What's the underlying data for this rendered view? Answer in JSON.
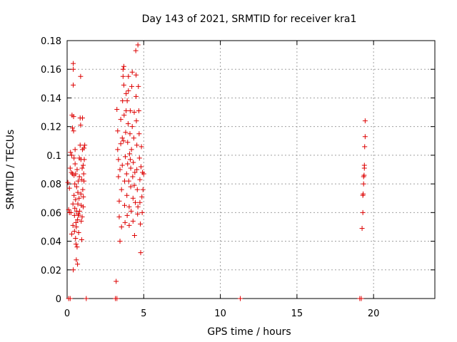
{
  "chart_data": {
    "type": "scatter",
    "title": "Day 143 of 2021, SRMTID for receiver kra1",
    "xlabel": "GPS time / hours",
    "ylabel": "SRMTID / TECUs",
    "xlim": [
      0,
      24
    ],
    "ylim": [
      0,
      0.18
    ],
    "x_ticks": [
      0,
      5,
      10,
      15,
      20
    ],
    "y_ticks": [
      0,
      0.02,
      0.04,
      0.06,
      0.08,
      0.1,
      0.12,
      0.14,
      0.16,
      0.18
    ],
    "x_tick_labels": [
      "0",
      "5",
      "10",
      "15",
      "20"
    ],
    "y_tick_labels": [
      "0",
      "0.02",
      "0.04",
      "0.06",
      "0.08",
      "0.1",
      "0.12",
      "0.14",
      "0.16",
      "0.18"
    ],
    "grid": true,
    "marker": "+",
    "color": "#dd0000",
    "series": [
      {
        "name": "SRMTID",
        "points": [
          [
            0.05,
            0.081
          ],
          [
            0.1,
            0.062
          ],
          [
            0.15,
            0.077
          ],
          [
            0.2,
            0.091
          ],
          [
            0.22,
            0.102
          ],
          [
            0.25,
            0.06
          ],
          [
            0.28,
            0.088
          ],
          [
            0.3,
            0.1
          ],
          [
            0.32,
            0.128
          ],
          [
            0.35,
            0.119
          ],
          [
            0.35,
            0.087
          ],
          [
            0.38,
            0.066
          ],
          [
            0.38,
            0.051
          ],
          [
            0.4,
            0.02
          ],
          [
            0.4,
            0.164
          ],
          [
            0.4,
            0.16
          ],
          [
            0.4,
            0.149
          ],
          [
            0.42,
            0.127
          ],
          [
            0.42,
            0.117
          ],
          [
            0.45,
            0.098
          ],
          [
            0.45,
            0.086
          ],
          [
            0.45,
            0.072
          ],
          [
            0.48,
            0.058
          ],
          [
            0.48,
            0.047
          ],
          [
            0.5,
            0.063
          ],
          [
            0.5,
            0.08
          ],
          [
            0.52,
            0.094
          ],
          [
            0.52,
            0.104
          ],
          [
            0.55,
            0.087
          ],
          [
            0.55,
            0.069
          ],
          [
            0.58,
            0.053
          ],
          [
            0.58,
            0.038
          ],
          [
            0.6,
            0.027
          ],
          [
            0.6,
            0.05
          ],
          [
            0.62,
            0.061
          ],
          [
            0.62,
            0.078
          ],
          [
            0.65,
            0.09
          ],
          [
            0.65,
            0.036
          ],
          [
            0.68,
            0.024
          ],
          [
            0.68,
            0.055
          ],
          [
            0.7,
            0.066
          ],
          [
            0.7,
            0.074
          ],
          [
            0.72,
            0.082
          ],
          [
            0.75,
            0.046
          ],
          [
            0.75,
            0.058
          ],
          [
            0.78,
            0.07
          ],
          [
            0.8,
            0.085
          ],
          [
            0.8,
            0.098
          ],
          [
            0.82,
            0.061
          ],
          [
            0.85,
            0.107
          ],
          [
            0.85,
            0.126
          ],
          [
            0.88,
            0.155
          ],
          [
            0.88,
            0.121
          ],
          [
            0.9,
            0.097
          ],
          [
            0.9,
            0.073
          ],
          [
            0.92,
            0.065
          ],
          [
            0.92,
            0.054
          ],
          [
            0.95,
            0.041
          ],
          [
            0.95,
            0.083
          ],
          [
            0.98,
            0.091
          ],
          [
            1.0,
            0.104
          ],
          [
            1.0,
            0.126
          ],
          [
            1.02,
            0.076
          ],
          [
            1.05,
            0.064
          ],
          [
            1.05,
            0.093
          ],
          [
            1.08,
            0.087
          ],
          [
            1.1,
            0.105
          ],
          [
            1.1,
            0.082
          ],
          [
            1.12,
            0.097
          ],
          [
            1.15,
            0.107
          ],
          [
            0.15,
            0.06
          ],
          [
            0.3,
            0.045
          ],
          [
            0.55,
            0.042
          ],
          [
            0.72,
            0.059
          ],
          [
            0.98,
            0.057
          ],
          [
            1.06,
            0.071
          ],
          [
            3.2,
            0.012
          ],
          [
            3.25,
            0.132
          ],
          [
            3.3,
            0.117
          ],
          [
            3.3,
            0.104
          ],
          [
            3.35,
            0.097
          ],
          [
            3.35,
            0.085
          ],
          [
            3.4,
            0.068
          ],
          [
            3.4,
            0.057
          ],
          [
            3.45,
            0.04
          ],
          [
            3.45,
            0.09
          ],
          [
            3.5,
            0.108
          ],
          [
            3.5,
            0.125
          ],
          [
            3.55,
            0.076
          ],
          [
            3.6,
            0.093
          ],
          [
            3.6,
            0.112
          ],
          [
            3.62,
            0.138
          ],
          [
            3.65,
            0.155
          ],
          [
            3.65,
            0.16
          ],
          [
            3.7,
            0.162
          ],
          [
            3.7,
            0.149
          ],
          [
            3.72,
            0.128
          ],
          [
            3.75,
            0.082
          ],
          [
            3.75,
            0.065
          ],
          [
            3.78,
            0.053
          ],
          [
            3.8,
            0.099
          ],
          [
            3.82,
            0.116
          ],
          [
            3.85,
            0.143
          ],
          [
            3.85,
            0.131
          ],
          [
            3.88,
            0.087
          ],
          [
            3.9,
            0.072
          ],
          [
            3.92,
            0.058
          ],
          [
            3.95,
            0.094
          ],
          [
            3.95,
            0.109
          ],
          [
            3.98,
            0.122
          ],
          [
            4.0,
            0.145
          ],
          [
            4.0,
            0.155
          ],
          [
            4.02,
            0.082
          ],
          [
            4.05,
            0.064
          ],
          [
            4.05,
            0.051
          ],
          [
            4.08,
            0.101
          ],
          [
            4.1,
            0.115
          ],
          [
            4.12,
            0.131
          ],
          [
            4.15,
            0.091
          ],
          [
            4.15,
            0.078
          ],
          [
            4.18,
            0.061
          ],
          [
            4.2,
            0.104
          ],
          [
            4.22,
            0.148
          ],
          [
            4.25,
            0.158
          ],
          [
            4.25,
            0.12
          ],
          [
            4.28,
            0.085
          ],
          [
            4.3,
            0.07
          ],
          [
            4.3,
            0.054
          ],
          [
            4.32,
            0.095
          ],
          [
            4.35,
            0.112
          ],
          [
            4.38,
            0.13
          ],
          [
            4.4,
            0.044
          ],
          [
            4.42,
            0.088
          ],
          [
            4.45,
            0.067
          ],
          [
            4.48,
            0.173
          ],
          [
            4.5,
            0.156
          ],
          [
            4.5,
            0.141
          ],
          [
            4.52,
            0.124
          ],
          [
            4.55,
            0.107
          ],
          [
            4.55,
            0.09
          ],
          [
            4.58,
            0.076
          ],
          [
            4.6,
            0.059
          ],
          [
            4.62,
            0.177
          ],
          [
            4.65,
            0.148
          ],
          [
            4.68,
            0.131
          ],
          [
            4.7,
            0.115
          ],
          [
            4.72,
            0.098
          ],
          [
            4.75,
            0.083
          ],
          [
            4.75,
            0.067
          ],
          [
            4.78,
            0.052
          ],
          [
            4.8,
            0.032
          ],
          [
            4.82,
            0.092
          ],
          [
            4.85,
            0.106
          ],
          [
            4.88,
            0.071
          ],
          [
            4.9,
            0.06
          ],
          [
            4.92,
            0.088
          ],
          [
            4.95,
            0.076
          ],
          [
            5.0,
            0.087
          ],
          [
            3.55,
            0.05
          ],
          [
            3.68,
            0.11
          ],
          [
            3.92,
            0.138
          ],
          [
            4.12,
            0.097
          ],
          [
            4.38,
            0.079
          ],
          [
            4.62,
            0.064
          ],
          [
            19.25,
            0.049
          ],
          [
            19.3,
            0.06
          ],
          [
            19.3,
            0.072
          ],
          [
            19.32,
            0.073
          ],
          [
            19.35,
            0.08
          ],
          [
            19.35,
            0.085
          ],
          [
            19.38,
            0.086
          ],
          [
            19.4,
            0.091
          ],
          [
            19.4,
            0.093
          ],
          [
            19.42,
            0.106
          ],
          [
            19.45,
            0.113
          ],
          [
            19.45,
            0.124
          ],
          [
            0.1,
            0.0
          ],
          [
            0.2,
            0.0
          ],
          [
            1.25,
            0.0
          ],
          [
            3.15,
            0.0
          ],
          [
            3.25,
            0.0
          ],
          [
            11.3,
            0.0
          ],
          [
            19.1,
            0.0
          ],
          [
            19.2,
            0.0
          ]
        ]
      }
    ]
  }
}
